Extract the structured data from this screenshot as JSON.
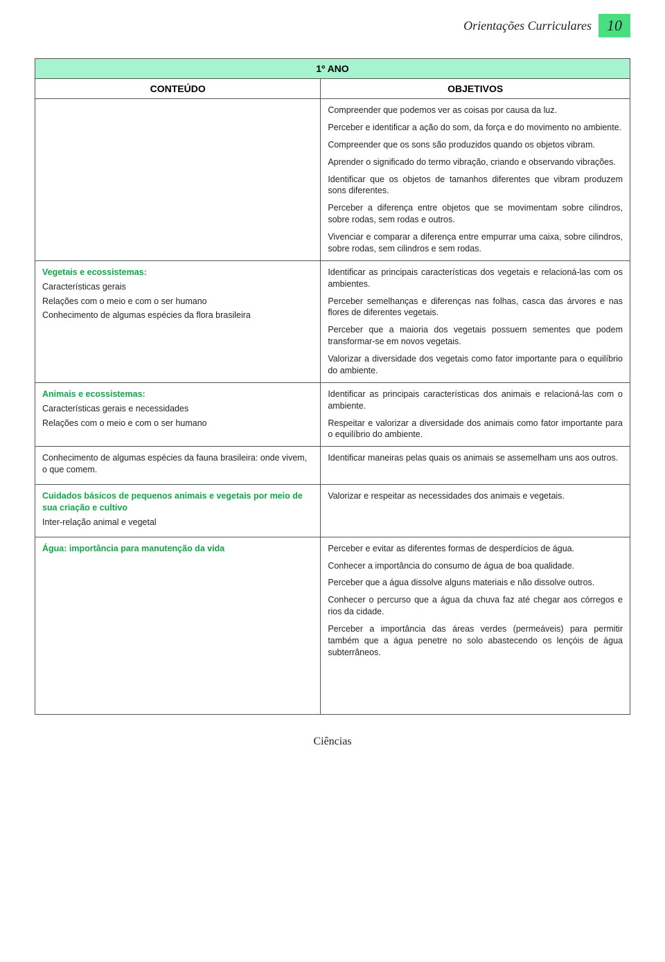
{
  "header": {
    "doc_title": "Orientações Curriculares",
    "page_number": "10"
  },
  "table": {
    "year_label": "1º ANO",
    "col_left": "CONTEÚDO",
    "col_right": "OBJETIVOS"
  },
  "colors": {
    "page_badge_bg": "#4ade80",
    "year_header_bg": "#a7f3d0",
    "topic_color": "#16a34a",
    "text_color": "#222222",
    "border_color": "#555555"
  },
  "rows": [
    {
      "left": {
        "blocks": []
      },
      "right": {
        "paras": [
          "Compreender que podemos ver as coisas por causa da luz.",
          "Perceber e identificar a ação do som, da força e do movimento no ambiente.",
          "Compreender que os sons são produzidos quando os objetos vibram.",
          "Aprender o significado do termo vibração, criando e observando vibrações.",
          "Identificar que os objetos de tamanhos diferentes que vibram produzem sons diferentes.",
          "Perceber a diferença entre objetos que se movimentam sobre cilindros, sobre rodas, sem rodas e outros.",
          "Vivenciar e comparar a diferença entre empurrar uma caixa, sobre cilindros, sobre rodas, sem cilindros e sem rodas."
        ]
      }
    },
    {
      "left": {
        "blocks": [
          {
            "topic": "Vegetais e ecossistemas:"
          },
          {
            "sub": "Características gerais"
          },
          {
            "sub": "Relações com o meio e com o ser humano"
          },
          {
            "sub": "Conhecimento de algumas espécies da flora brasileira"
          }
        ]
      },
      "right": {
        "paras": [
          "Identificar as principais características dos vegetais e relacioná-las com os ambientes.",
          "Perceber semelhanças e diferenças nas folhas, casca das árvores e nas flores de diferentes vegetais.",
          "Perceber que a maioria dos vegetais possuem sementes que podem transformar-se em novos vegetais.",
          "Valorizar a diversidade dos vegetais como fator importante para o equilíbrio do ambiente."
        ]
      }
    },
    {
      "left": {
        "blocks": [
          {
            "topic": "Animais e ecossistemas:"
          },
          {
            "sub": "Características gerais e necessidades"
          },
          {
            "sub": "Relações com o meio e com o ser humano"
          }
        ]
      },
      "right": {
        "paras": [
          "Identificar as principais características dos animais e relacioná-las com o ambiente.",
          "Respeitar e valorizar a diversidade dos animais como fator importante para o equilíbrio do ambiente."
        ]
      }
    },
    {
      "left": {
        "blocks": [
          {
            "sub": "Conhecimento de algumas espécies da fauna brasileira: onde vivem, o que comem."
          }
        ]
      },
      "right": {
        "paras": [
          "Identificar maneiras pelas quais os animais se assemelham uns aos outros."
        ]
      }
    },
    {
      "left": {
        "blocks": [
          {
            "topic": "Cuidados básicos de pequenos animais e vegetais por meio de sua criação e cultivo"
          },
          {
            "sub": "Inter-relação animal e vegetal"
          }
        ]
      },
      "right": {
        "paras": [
          "Valorizar e respeitar as necessidades dos animais e vegetais."
        ]
      }
    },
    {
      "left": {
        "blocks": [
          {
            "topic": "Água: importância para manutenção da vida"
          }
        ]
      },
      "right": {
        "paras": [
          "Perceber e evitar as diferentes formas de desperdícios de água.",
          "Conhecer a importância do consumo de água de boa qualidade.",
          "Perceber que a água dissolve alguns materiais e não dissolve outros.",
          "Conhecer o percurso que a água da chuva faz até chegar aos córregos e rios da cidade.",
          "Perceber a importância das áreas verdes (permeáveis) para permitir também que a água penetre no solo abastecendo os lençóis de água subterrâneos."
        ]
      }
    }
  ],
  "footer": {
    "subject": "Ciências"
  }
}
